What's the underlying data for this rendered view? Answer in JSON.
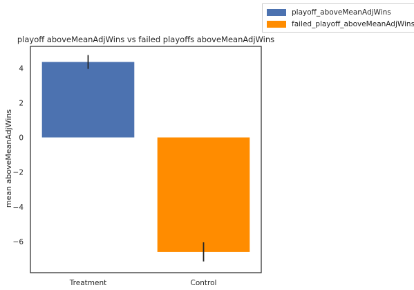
{
  "chart_data": {
    "type": "bar",
    "title": "playoff aboveMeanAdjWins vs failed playoffs aboveMeanAdjWins",
    "xlabel": "",
    "ylabel": "mean aboveMeanAdjWins",
    "categories": [
      "Treatment",
      "Control"
    ],
    "values": [
      4.35,
      -6.6
    ],
    "errors": [
      0.4,
      0.55
    ],
    "ylim": [
      -7.8,
      5.25
    ],
    "yticks": [
      4,
      2,
      0,
      -2,
      -4,
      -6
    ],
    "colors": [
      "#4c72b0",
      "#ff8c00"
    ],
    "grid": false,
    "legend_position": "outside top-right",
    "series": [
      {
        "name": "playoff_aboveMeanAdjWins",
        "color": "#4c72b0"
      },
      {
        "name": "failed_playoff_aboveMeanAdjWins",
        "color": "#ff8c00"
      }
    ]
  }
}
